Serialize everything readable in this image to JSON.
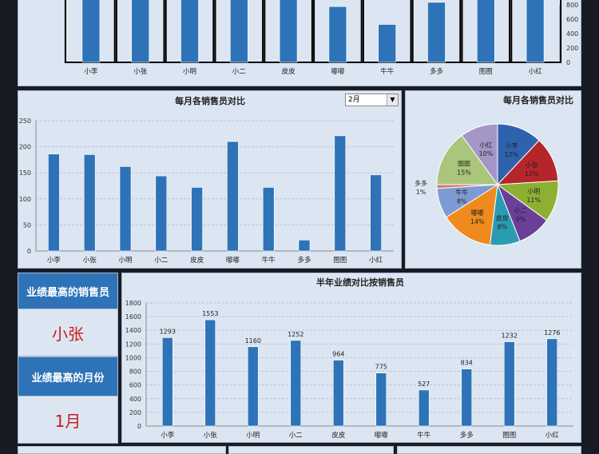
{
  "salespeople": [
    "小李",
    "小张",
    "小明",
    "小二",
    "皮皮",
    "嘟嘟",
    "牛牛",
    "多多",
    "图图",
    "小红"
  ],
  "top_chart": {
    "yticks": [
      "0",
      "200",
      "400",
      "600",
      "800"
    ],
    "values": [
      1293,
      1553,
      1160,
      1252,
      964,
      775,
      527,
      834,
      1232,
      1276
    ]
  },
  "monthly_chart": {
    "title": "每月各销售员对比",
    "selected_month": "2月",
    "yticks": [
      "0",
      "50",
      "100",
      "150",
      "200",
      "250"
    ],
    "values": [
      186,
      185,
      162,
      144,
      122,
      210,
      122,
      21,
      221,
      146
    ],
    "ylim": [
      0,
      250
    ]
  },
  "pie_chart": {
    "title": "每月各销售员对比",
    "percents": [
      12,
      12,
      11,
      9,
      8,
      14,
      8,
      1,
      15,
      10
    ],
    "labels": [
      "12%",
      "12%",
      "11%",
      "9%",
      "8%",
      "14%",
      "8%",
      "1%",
      "15%",
      "10%"
    ],
    "colors": [
      "#2f62ad",
      "#b5262b",
      "#8db032",
      "#6a3f98",
      "#2b9bb2",
      "#ef8a1f",
      "#7d9bd2",
      "#d97474",
      "#a9c67c",
      "#a596c8"
    ]
  },
  "summary": {
    "top_seller_label": "业绩最高的销售员",
    "top_seller": "小张",
    "top_month_label": "业绩最高的月份",
    "top_month": "1月"
  },
  "half_year_chart": {
    "title": "半年业绩对比按销售员",
    "yticks": [
      "0",
      "200",
      "400",
      "600",
      "800",
      "1000",
      "1200",
      "1400",
      "1600",
      "1800"
    ],
    "values": [
      1293,
      1553,
      1160,
      1252,
      964,
      775,
      527,
      834,
      1232,
      1276
    ],
    "labels": [
      "1293",
      "1553",
      "1160",
      "1252",
      "964",
      "775",
      "527",
      "834",
      "1232",
      "1276"
    ],
    "ylim": [
      0,
      1800
    ]
  },
  "colors": {
    "bar": "#2e73b8",
    "accent_text": "#d01818"
  }
}
